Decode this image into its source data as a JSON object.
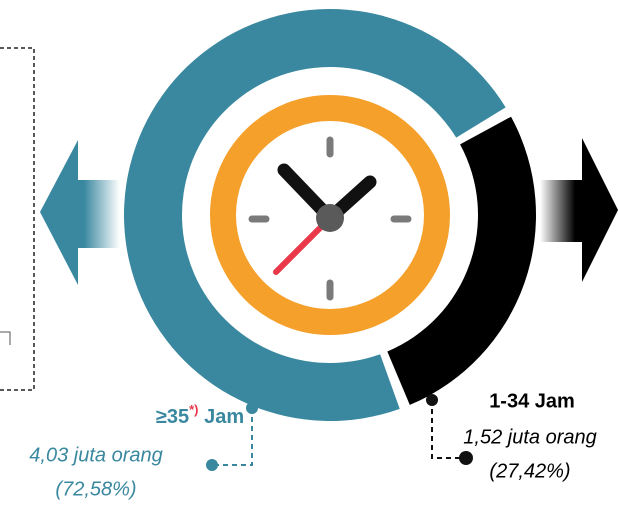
{
  "chart_data": {
    "type": "pie",
    "categories": [
      "≥35",
      "1-34 Jam"
    ],
    "category_footnote": "*)",
    "unit_word": "Jam",
    "values": [
      72.58,
      27.42
    ],
    "value_labels": [
      "(72,58%)",
      "(27,42%)"
    ],
    "annotations": [
      "4,03 juta orang",
      "1,52 juta orang"
    ],
    "colors": [
      "#3a889f",
      "#000000"
    ]
  }
}
